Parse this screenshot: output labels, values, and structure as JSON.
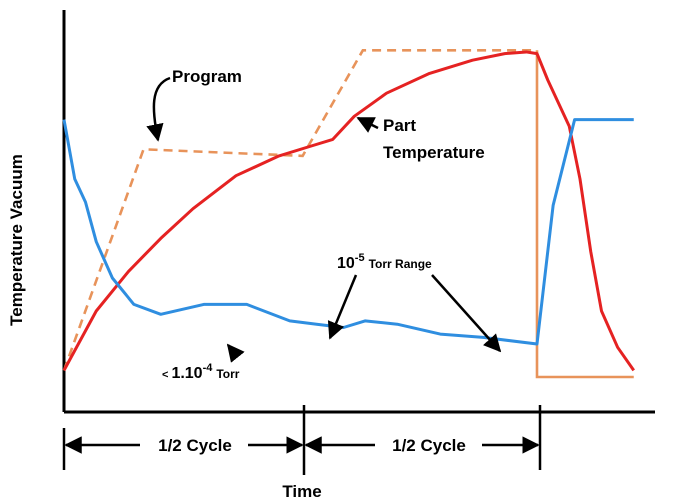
{
  "chart_data": {
    "type": "line",
    "ylabel": "Temperature Vacuum",
    "xlabel": "Time",
    "series": [
      {
        "name": "Program",
        "color": "#e8935a",
        "style": "dashed-then-solid",
        "points": [
          [
            0,
            0.02
          ],
          [
            0.74,
            0.69
          ],
          [
            2.22,
            0.67
          ],
          [
            2.78,
            0.99
          ],
          [
            4.4,
            0.99
          ],
          [
            4.4,
            0.0
          ],
          [
            5.3,
            0.0
          ]
        ]
      },
      {
        "name": "Part Temperature",
        "color": "#e52222",
        "points": [
          [
            0,
            0.02
          ],
          [
            0.3,
            0.2
          ],
          [
            0.6,
            0.32
          ],
          [
            0.9,
            0.42
          ],
          [
            1.2,
            0.51
          ],
          [
            1.6,
            0.61
          ],
          [
            2.0,
            0.67
          ],
          [
            2.3,
            0.7
          ],
          [
            2.5,
            0.72
          ],
          [
            2.7,
            0.79
          ],
          [
            3.0,
            0.86
          ],
          [
            3.4,
            0.92
          ],
          [
            3.8,
            0.96
          ],
          [
            4.1,
            0.98
          ],
          [
            4.3,
            0.985
          ],
          [
            4.4,
            0.98
          ],
          [
            4.5,
            0.9
          ],
          [
            4.6,
            0.83
          ],
          [
            4.7,
            0.76
          ],
          [
            4.8,
            0.6
          ],
          [
            4.9,
            0.38
          ],
          [
            5.0,
            0.2
          ],
          [
            5.15,
            0.09
          ],
          [
            5.3,
            0.02
          ]
        ]
      },
      {
        "name": "Vacuum",
        "color": "#2f8ee0",
        "points": [
          [
            0,
            0.78
          ],
          [
            0.1,
            0.6
          ],
          [
            0.2,
            0.53
          ],
          [
            0.3,
            0.41
          ],
          [
            0.45,
            0.3
          ],
          [
            0.65,
            0.22
          ],
          [
            0.9,
            0.19
          ],
          [
            1.3,
            0.22
          ],
          [
            1.7,
            0.22
          ],
          [
            2.1,
            0.17
          ],
          [
            2.35,
            0.16
          ],
          [
            2.6,
            0.15
          ],
          [
            2.8,
            0.17
          ],
          [
            3.1,
            0.16
          ],
          [
            3.5,
            0.13
          ],
          [
            3.9,
            0.12
          ],
          [
            4.4,
            0.1
          ],
          [
            4.55,
            0.52
          ],
          [
            4.75,
            0.78
          ],
          [
            5.3,
            0.78
          ]
        ]
      }
    ],
    "annotations": {
      "program": "Program",
      "part_line1": "Part",
      "part_line2": "Temperature",
      "torr_range_base": "10",
      "torr_range_exp": "-5",
      "torr_range_unit": "Torr Range",
      "torr4_symbol": "<",
      "torr4_base": "1.10",
      "torr4_exp": "-4",
      "torr4_unit": "Torr"
    },
    "time_axis": {
      "cycle1": "1/2 Cycle",
      "cycle2": "1/2 Cycle"
    }
  }
}
